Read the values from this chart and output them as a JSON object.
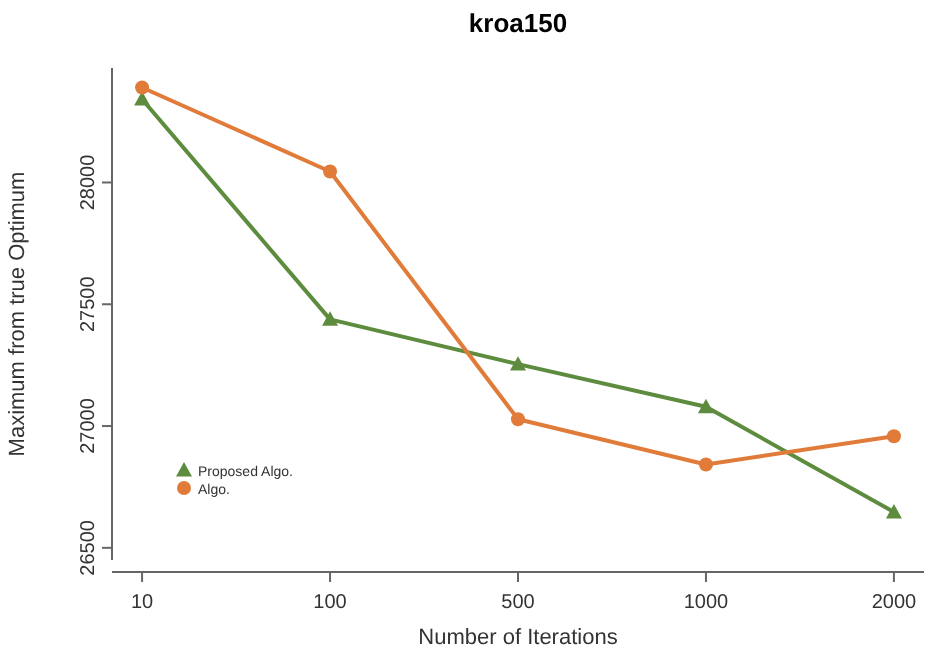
{
  "chart_data": {
    "type": "line",
    "title": "kroa150",
    "xlabel": "Number of Iterations",
    "ylabel": "Maximum from true Optimum",
    "categories": [
      "10",
      "100",
      "500",
      "1000",
      "2000"
    ],
    "ylim": [
      26450,
      28470
    ],
    "yticks": [
      26500,
      27000,
      27500,
      28000
    ],
    "grid": false,
    "legend": "bottom left",
    "line_style": "solid",
    "series": [
      {
        "name": "Proposed Algo.",
        "color": "#5e8c3e",
        "marker": "triangle",
        "values": [
          28342,
          27438,
          27254,
          27079,
          26647
        ]
      },
      {
        "name": "Algo.",
        "color": "#e07b39",
        "marker": "circle",
        "values": [
          28390,
          28045,
          27028,
          26842,
          26958
        ]
      }
    ]
  }
}
